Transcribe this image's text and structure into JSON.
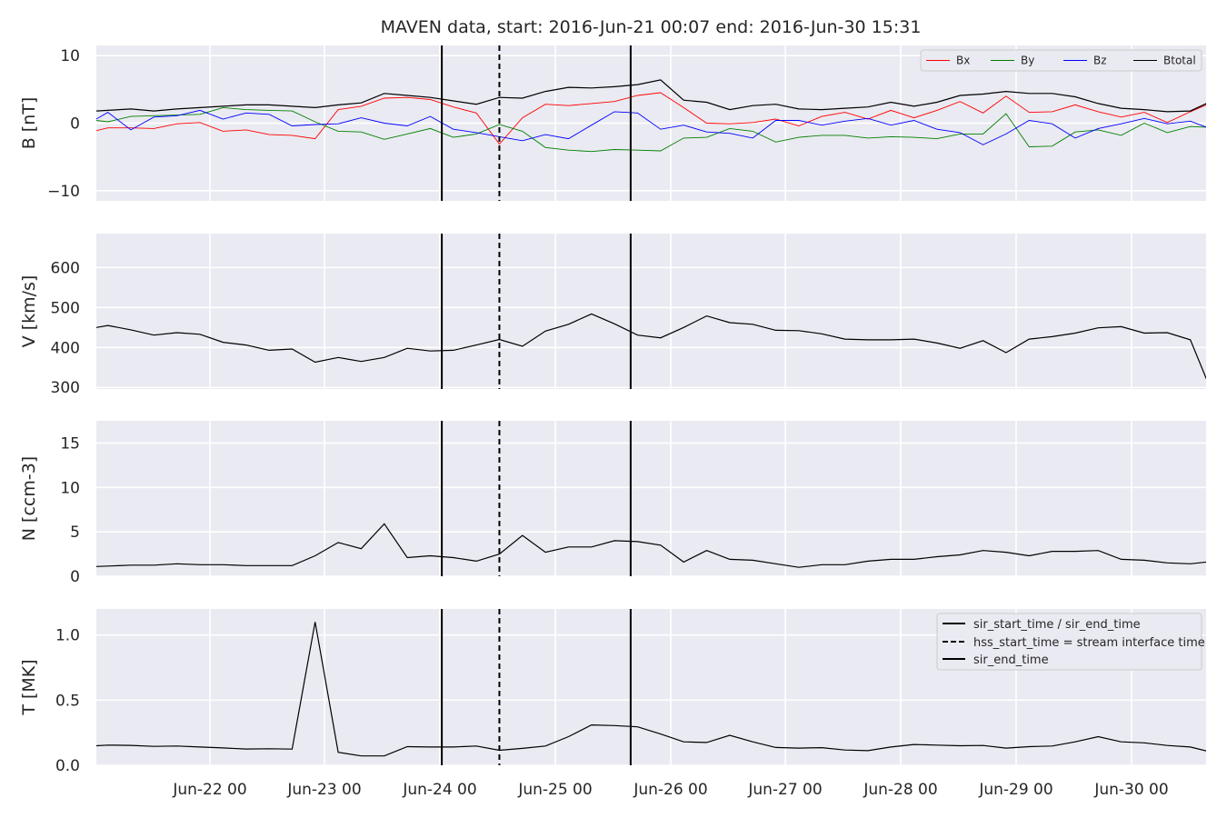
{
  "title": "MAVEN data, start: 2016-Jun-21 00:07  end: 2016-Jun-30 15:31",
  "x_ticks": [
    "Jun-22 00",
    "Jun-23 00",
    "Jun-24 00",
    "Jun-25 00",
    "Jun-26 00",
    "Jun-27 00",
    "Jun-28 00",
    "Jun-29 00",
    "Jun-30 00"
  ],
  "colors": {
    "Bx": "#ff0000",
    "By": "#008000",
    "Bz": "#0000ff",
    "Btotal": "#000000",
    "background": "#eaeaf2",
    "grid": "#ffffff"
  },
  "chart_data": [
    {
      "type": "line",
      "ylabel": "B [nT]",
      "ylim": [
        -11.5,
        11.5
      ],
      "yticks": [
        -10,
        0,
        10
      ],
      "ytick_labels": [
        "−10",
        "0",
        "10"
      ],
      "x_days": [
        0.0,
        0.1,
        0.3,
        0.5,
        0.7,
        0.9,
        1.1,
        1.3,
        1.5,
        1.7,
        1.9,
        2.1,
        2.3,
        2.5,
        2.7,
        2.9,
        3.1,
        3.3,
        3.5,
        3.7,
        3.9,
        4.1,
        4.3,
        4.5,
        4.7,
        4.9,
        5.1,
        5.3,
        5.5,
        5.7,
        5.9,
        6.1,
        6.3,
        6.5,
        6.7,
        6.9,
        7.1,
        7.3,
        7.5,
        7.7,
        7.9,
        8.1,
        8.3,
        8.5,
        8.7,
        8.9,
        9.1,
        9.3,
        9.5,
        9.64
      ],
      "series": [
        {
          "name": "Bx",
          "values": [
            -1.1,
            -0.7,
            -0.7,
            -0.8,
            -0.1,
            0.1,
            -1.2,
            -1.0,
            -1.7,
            -1.8,
            -2.3,
            2.0,
            2.5,
            3.7,
            3.8,
            3.5,
            2.4,
            1.5,
            -3.1,
            0.8,
            2.8,
            2.6,
            2.9,
            3.2,
            4.1,
            4.5,
            2.3,
            0.0,
            -0.1,
            0.1,
            0.6,
            -0.4,
            1.0,
            1.6,
            0.6,
            1.9,
            0.8,
            1.9,
            3.2,
            1.5,
            4.0,
            1.6,
            1.7,
            2.7,
            1.7,
            0.9,
            1.6,
            0.1,
            1.7,
            2.7
          ]
        },
        {
          "name": "By",
          "values": [
            0.4,
            0.2,
            1.0,
            1.1,
            1.2,
            1.3,
            2.3,
            2.0,
            1.9,
            1.8,
            0.2,
            -1.2,
            -1.3,
            -2.4,
            -1.6,
            -0.8,
            -2.1,
            -1.6,
            -0.2,
            -1.2,
            -3.6,
            -4.0,
            -4.2,
            -3.9,
            -4.0,
            -4.1,
            -2.2,
            -2.1,
            -0.8,
            -1.2,
            -2.8,
            -2.1,
            -1.8,
            -1.8,
            -2.2,
            -2.0,
            -2.1,
            -2.3,
            -1.6,
            -1.6,
            1.4,
            -3.5,
            -3.4,
            -1.3,
            -1.0,
            -1.8,
            0.0,
            -1.4,
            -0.5,
            -0.6
          ]
        },
        {
          "name": "Bz",
          "values": [
            0.6,
            1.6,
            -1.0,
            0.9,
            1.1,
            1.9,
            0.6,
            1.5,
            1.3,
            -0.4,
            -0.2,
            -0.1,
            0.8,
            0.0,
            -0.4,
            1.0,
            -0.9,
            -1.4,
            -2.0,
            -2.6,
            -1.7,
            -2.3,
            -0.3,
            1.7,
            1.5,
            -0.9,
            -0.3,
            -1.3,
            -1.5,
            -2.2,
            0.4,
            0.4,
            -0.3,
            0.3,
            0.7,
            -0.3,
            0.4,
            -0.9,
            -1.4,
            -3.2,
            -1.6,
            0.4,
            -0.1,
            -2.2,
            -0.8,
            -0.1,
            0.7,
            -0.1,
            0.3,
            -0.6
          ]
        },
        {
          "name": "Btotal",
          "values": [
            1.8,
            1.9,
            2.1,
            1.8,
            2.1,
            2.3,
            2.5,
            2.7,
            2.7,
            2.5,
            2.3,
            2.7,
            3.0,
            4.4,
            4.1,
            3.8,
            3.3,
            2.8,
            3.8,
            3.7,
            4.7,
            5.3,
            5.2,
            5.4,
            5.7,
            6.4,
            3.4,
            3.1,
            2.0,
            2.6,
            2.8,
            2.1,
            2.0,
            2.2,
            2.4,
            3.1,
            2.5,
            3.1,
            4.1,
            4.3,
            4.7,
            4.4,
            4.4,
            3.9,
            2.9,
            2.2,
            2.0,
            1.7,
            1.8,
            2.9
          ]
        }
      ],
      "legend": [
        "Bx",
        "By",
        "Bz",
        "Btotal"
      ],
      "legend_position": "top-right"
    },
    {
      "type": "line",
      "ylabel": "V [km/s]",
      "ylim": [
        296,
        685
      ],
      "yticks": [
        300,
        400,
        500,
        600
      ],
      "ytick_labels": [
        "300",
        "400",
        "500",
        "600"
      ],
      "x_days": [
        0.0,
        0.1,
        0.3,
        0.5,
        0.7,
        0.9,
        1.1,
        1.3,
        1.5,
        1.7,
        1.9,
        2.1,
        2.3,
        2.5,
        2.7,
        2.9,
        3.1,
        3.3,
        3.5,
        3.7,
        3.9,
        4.1,
        4.3,
        4.5,
        4.7,
        4.9,
        5.1,
        5.3,
        5.5,
        5.7,
        5.9,
        6.1,
        6.3,
        6.5,
        6.7,
        6.9,
        7.1,
        7.3,
        7.5,
        7.7,
        7.9,
        8.1,
        8.3,
        8.5,
        8.7,
        8.9,
        9.1,
        9.3,
        9.5,
        9.64
      ],
      "series": [
        {
          "name": "V",
          "values": [
            450,
            455,
            444,
            431,
            437,
            433,
            413,
            406,
            393,
            396,
            363,
            375,
            365,
            375,
            398,
            391,
            393,
            406,
            420,
            403,
            441,
            458,
            484,
            459,
            431,
            424,
            450,
            479,
            462,
            458,
            443,
            442,
            434,
            421,
            419,
            419,
            421,
            411,
            398,
            417,
            387,
            421,
            427,
            436,
            449,
            452,
            436,
            437,
            419,
            321
          ]
        }
      ]
    },
    {
      "type": "line",
      "ylabel": "N [ccm-3]",
      "ylim": [
        0,
        17.5
      ],
      "yticks": [
        0,
        5,
        10,
        15
      ],
      "ytick_labels": [
        "0",
        "5",
        "10",
        "15"
      ],
      "x_days": [
        0.0,
        0.1,
        0.3,
        0.5,
        0.7,
        0.9,
        1.1,
        1.3,
        1.5,
        1.7,
        1.9,
        2.1,
        2.3,
        2.5,
        2.7,
        2.9,
        3.1,
        3.3,
        3.5,
        3.7,
        3.9,
        4.1,
        4.3,
        4.5,
        4.7,
        4.9,
        5.1,
        5.3,
        5.5,
        5.7,
        5.9,
        6.1,
        6.3,
        6.5,
        6.7,
        6.9,
        7.1,
        7.3,
        7.5,
        7.7,
        7.9,
        8.1,
        8.3,
        8.5,
        8.7,
        8.9,
        9.1,
        9.3,
        9.5,
        9.64
      ],
      "series": [
        {
          "name": "N",
          "values": [
            1.1,
            1.15,
            1.25,
            1.25,
            1.4,
            1.3,
            1.3,
            1.2,
            1.2,
            1.2,
            2.3,
            3.8,
            3.1,
            5.9,
            2.1,
            2.3,
            2.1,
            1.7,
            2.5,
            4.6,
            2.7,
            3.3,
            3.3,
            4.0,
            3.9,
            3.5,
            1.6,
            2.9,
            1.9,
            1.8,
            1.4,
            1.0,
            1.3,
            1.3,
            1.7,
            1.9,
            1.9,
            2.2,
            2.4,
            2.9,
            2.7,
            2.3,
            2.8,
            2.8,
            2.9,
            1.9,
            1.8,
            1.5,
            1.4,
            1.6
          ]
        }
      ]
    },
    {
      "type": "line",
      "ylabel": "T [MK]",
      "ylim": [
        0,
        1.2
      ],
      "yticks": [
        0.0,
        0.5,
        1.0
      ],
      "ytick_labels": [
        "0.0",
        "0.5",
        "1.0"
      ],
      "x_days": [
        0.0,
        0.1,
        0.3,
        0.5,
        0.7,
        0.9,
        1.1,
        1.3,
        1.5,
        1.7,
        1.9,
        2.1,
        2.3,
        2.5,
        2.7,
        2.9,
        3.1,
        3.3,
        3.5,
        3.7,
        3.9,
        4.1,
        4.3,
        4.5,
        4.7,
        4.9,
        5.1,
        5.3,
        5.5,
        5.7,
        5.9,
        6.1,
        6.3,
        6.5,
        6.7,
        6.9,
        7.1,
        7.3,
        7.5,
        7.7,
        7.9,
        8.1,
        8.3,
        8.5,
        8.7,
        8.9,
        9.1,
        9.3,
        9.5,
        9.64
      ],
      "series": [
        {
          "name": "T",
          "values": [
            0.15,
            0.155,
            0.153,
            0.145,
            0.148,
            0.14,
            0.133,
            0.125,
            0.127,
            0.124,
            1.1,
            0.1,
            0.072,
            0.072,
            0.143,
            0.14,
            0.14,
            0.148,
            0.115,
            0.13,
            0.148,
            0.22,
            0.31,
            0.305,
            0.295,
            0.24,
            0.18,
            0.175,
            0.23,
            0.18,
            0.137,
            0.132,
            0.135,
            0.117,
            0.112,
            0.14,
            0.16,
            0.155,
            0.15,
            0.152,
            0.132,
            0.143,
            0.148,
            0.18,
            0.22,
            0.18,
            0.172,
            0.152,
            0.14,
            0.11
          ]
        }
      ],
      "legend": [
        "sir_start_time / sir_end_time",
        "hss_start_time = stream interface time",
        "sir_end_time"
      ],
      "legend_position": "top-right"
    }
  ],
  "event_lines_days": {
    "sir_start": 3.0,
    "hss_start": 3.5,
    "sir_end": 4.64
  }
}
